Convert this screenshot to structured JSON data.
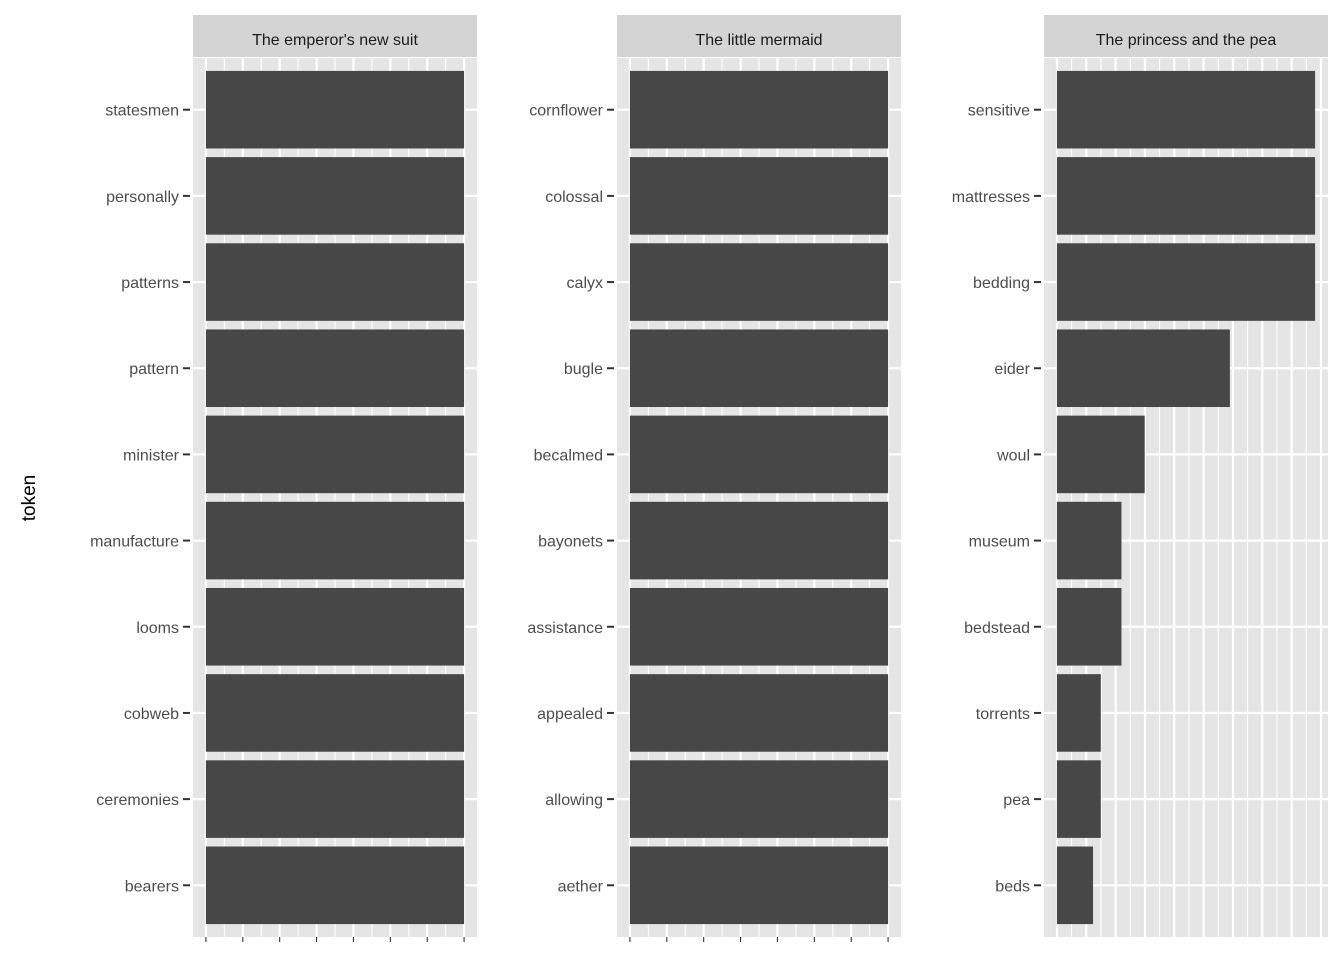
{
  "chart_data": {
    "type": "bar",
    "orientation": "horizontal",
    "faceted": true,
    "ylabel": "token",
    "xlabel": "",
    "grid": true,
    "x_tick_labels_shown": false,
    "value_scale_note": "relative bar lengths (no x-axis tick labels printed)",
    "colors": {
      "bar": "#474747",
      "panel": "#e5e5e5",
      "strip": "#d4d4d4",
      "grid": "#ffffff"
    },
    "panels": [
      {
        "title": "The emperor's new suit",
        "categories": [
          "statesmen",
          "personally",
          "patterns",
          "pattern",
          "minister",
          "manufacture",
          "looms",
          "cobweb",
          "ceremonies",
          "bearers"
        ],
        "values": [
          1,
          1,
          1,
          1,
          1,
          1,
          1,
          1,
          1,
          1
        ]
      },
      {
        "title": "The little mermaid",
        "categories": [
          "cornflower",
          "colossal",
          "calyx",
          "bugle",
          "becalmed",
          "bayonets",
          "assistance",
          "appealed",
          "allowing",
          "aether"
        ],
        "values": [
          1,
          1,
          1,
          1,
          1,
          1,
          1,
          1,
          1,
          1
        ]
      },
      {
        "title": "The princess and the pea",
        "categories": [
          "sensitive",
          "mattresses",
          "bedding",
          "eider",
          "woul",
          "museum",
          "bedstead",
          "torrents",
          "pea",
          "beds"
        ],
        "values": [
          1,
          1,
          1,
          0.67,
          0.34,
          0.25,
          0.25,
          0.17,
          0.17,
          0.14
        ]
      }
    ]
  }
}
